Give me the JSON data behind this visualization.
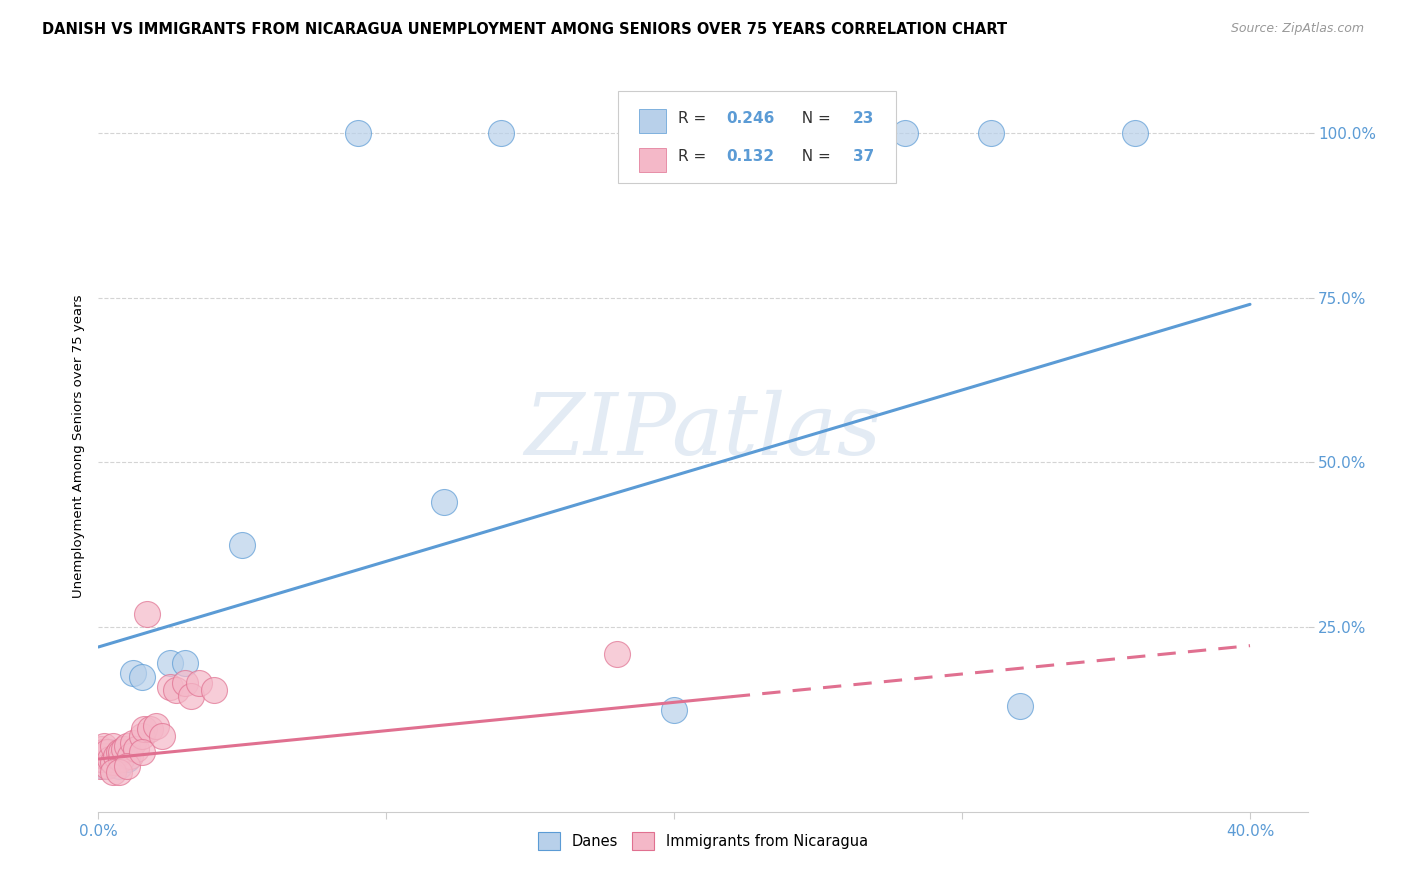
{
  "title": "DANISH VS IMMIGRANTS FROM NICARAGUA UNEMPLOYMENT AMONG SENIORS OVER 75 YEARS CORRELATION CHART",
  "source": "Source: ZipAtlas.com",
  "ylabel": "Unemployment Among Seniors over 75 years",
  "xlim": [
    0.0,
    0.42
  ],
  "ylim": [
    -0.03,
    1.08
  ],
  "xtick_vals": [
    0.0,
    0.1,
    0.2,
    0.3,
    0.4
  ],
  "xtick_labels": [
    "0.0%",
    "",
    "",
    "",
    "40.0%"
  ],
  "ytick_vals": [
    0.25,
    0.5,
    0.75,
    1.0
  ],
  "ytick_labels": [
    "25.0%",
    "50.0%",
    "75.0%",
    "100.0%"
  ],
  "blue_R": "0.246",
  "blue_N": "23",
  "pink_R": "0.132",
  "pink_N": "37",
  "blue_fill": "#b8d0ea",
  "blue_edge": "#5b9bd5",
  "blue_line": "#5b9bd5",
  "pink_fill": "#f4b8c8",
  "pink_edge": "#e07090",
  "pink_line": "#e07090",
  "bg_color": "#ffffff",
  "grid_color": "#d0d0d0",
  "blue_line_y0": 0.22,
  "blue_line_slope": 1.3,
  "pink_line_y0": 0.05,
  "pink_line_slope": 0.43,
  "blue_x": [
    0.001,
    0.002,
    0.003,
    0.004,
    0.005,
    0.007,
    0.008,
    0.01,
    0.012,
    0.015,
    0.025,
    0.03,
    0.05,
    0.12,
    0.2,
    0.32,
    0.09,
    0.14,
    0.19,
    0.24,
    0.28,
    0.31,
    0.36
  ],
  "blue_y": [
    0.05,
    0.04,
    0.05,
    0.06,
    0.05,
    0.04,
    0.05,
    0.05,
    0.18,
    0.175,
    0.195,
    0.195,
    0.375,
    0.44,
    0.125,
    0.13,
    1.0,
    1.0,
    1.0,
    1.0,
    1.0,
    1.0,
    1.0
  ],
  "pink_x": [
    0.0005,
    0.001,
    0.001,
    0.0015,
    0.002,
    0.002,
    0.003,
    0.003,
    0.004,
    0.005,
    0.005,
    0.006,
    0.007,
    0.008,
    0.008,
    0.009,
    0.01,
    0.011,
    0.012,
    0.013,
    0.015,
    0.016,
    0.017,
    0.018,
    0.02,
    0.022,
    0.025,
    0.027,
    0.03,
    0.032,
    0.035,
    0.04,
    0.005,
    0.007,
    0.01,
    0.015,
    0.18
  ],
  "pink_y": [
    0.04,
    0.05,
    0.065,
    0.06,
    0.055,
    0.07,
    0.06,
    0.04,
    0.05,
    0.045,
    0.07,
    0.055,
    0.06,
    0.05,
    0.06,
    0.065,
    0.07,
    0.055,
    0.075,
    0.065,
    0.085,
    0.095,
    0.27,
    0.095,
    0.1,
    0.085,
    0.16,
    0.155,
    0.165,
    0.145,
    0.165,
    0.155,
    0.03,
    0.03,
    0.04,
    0.06,
    0.21
  ],
  "watermark_text": "ZIPatlas",
  "watermark_color": "#c8d8ea",
  "watermark_alpha": 0.5
}
